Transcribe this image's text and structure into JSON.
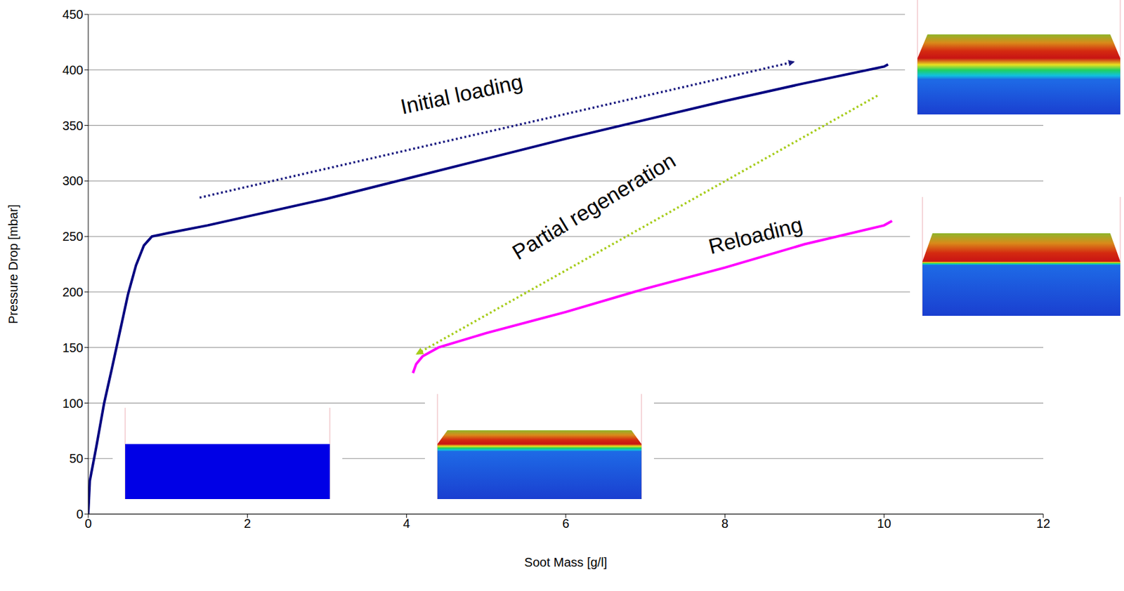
{
  "chart_data": {
    "type": "line",
    "x_label": "Soot Mass [g/l]",
    "y_label": "Pressure Drop [mbar]",
    "xlim": [
      0,
      12
    ],
    "xticks": [
      0,
      2,
      4,
      6,
      8,
      10,
      12
    ],
    "ylim": [
      0,
      450
    ],
    "yticks": [
      0,
      50,
      100,
      150,
      200,
      250,
      300,
      350,
      400,
      450
    ],
    "grid": true,
    "annotations": [
      "Initial loading",
      "Partial regeneration",
      "Reloading"
    ],
    "series": [
      {
        "color": "#000080",
        "x": [
          0,
          0.02,
          0.1,
          0.2,
          0.3,
          0.4,
          0.5,
          0.6,
          0.7,
          0.8,
          1,
          1.5,
          2,
          3,
          4,
          5,
          6,
          7,
          8,
          9,
          10,
          10.05
        ],
        "values": [
          0,
          30,
          60,
          100,
          132,
          165,
          198,
          224,
          242,
          250,
          253,
          260,
          268,
          284,
          302,
          320,
          338,
          355,
          372,
          388,
          403,
          405
        ]
      },
      {
        "color": "#ff00ff",
        "x": [
          4.08,
          4.12,
          4.2,
          4.4,
          5,
          6,
          7,
          8,
          9,
          10,
          10.1
        ],
        "values": [
          127,
          135,
          142,
          150,
          163,
          182,
          203,
          222,
          243,
          260,
          264
        ]
      }
    ]
  }
}
